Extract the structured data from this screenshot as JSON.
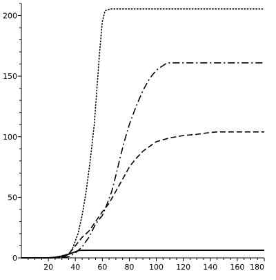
{
  "chart_data": {
    "type": "line",
    "title": "",
    "xlabel": "",
    "ylabel": "",
    "xlim": [
      0,
      180
    ],
    "ylim": [
      0,
      210
    ],
    "x_ticks": [
      20,
      40,
      60,
      80,
      100,
      120,
      140,
      160,
      180
    ],
    "y_ticks": [
      0,
      50,
      100,
      150,
      200
    ],
    "grid": false,
    "series": [
      {
        "style": "solid",
        "color": "#000000",
        "points": [
          [
            0,
            0
          ],
          [
            20,
            0
          ],
          [
            25,
            0.5
          ],
          [
            30,
            1.5
          ],
          [
            35,
            3
          ],
          [
            40,
            5
          ],
          [
            43,
            6.2
          ],
          [
            50,
            6.3
          ],
          [
            100,
            6.3
          ],
          [
            180,
            6.3
          ]
        ]
      },
      {
        "style": "dotted",
        "color": "#000000",
        "points": [
          [
            0,
            0
          ],
          [
            25,
            0
          ],
          [
            30,
            0.5
          ],
          [
            35,
            3
          ],
          [
            38,
            8
          ],
          [
            42,
            20
          ],
          [
            45,
            35
          ],
          [
            48,
            55
          ],
          [
            51,
            80
          ],
          [
            54,
            110
          ],
          [
            56,
            140
          ],
          [
            58,
            170
          ],
          [
            60,
            195
          ],
          [
            62,
            204
          ],
          [
            66,
            205.5
          ],
          [
            180,
            205.5
          ]
        ]
      },
      {
        "style": "dashed",
        "color": "#000000",
        "points": [
          [
            0,
            0
          ],
          [
            30,
            0
          ],
          [
            35,
            3
          ],
          [
            40,
            10
          ],
          [
            45,
            17
          ],
          [
            50,
            22
          ],
          [
            55,
            30
          ],
          [
            60,
            38
          ],
          [
            65,
            45
          ],
          [
            70,
            55
          ],
          [
            75,
            65
          ],
          [
            80,
            75
          ],
          [
            85,
            82
          ],
          [
            90,
            88
          ],
          [
            95,
            92
          ],
          [
            100,
            96
          ],
          [
            110,
            99
          ],
          [
            120,
            101
          ],
          [
            130,
            102
          ],
          [
            140,
            103.5
          ],
          [
            145,
            104
          ],
          [
            180,
            104
          ]
        ]
      },
      {
        "style": "dashdot",
        "color": "#000000",
        "points": [
          [
            0,
            0
          ],
          [
            30,
            0
          ],
          [
            35,
            1
          ],
          [
            40,
            4
          ],
          [
            45,
            9
          ],
          [
            50,
            17
          ],
          [
            55,
            28
          ],
          [
            60,
            35
          ],
          [
            63,
            43
          ],
          [
            67,
            55
          ],
          [
            70,
            68
          ],
          [
            73,
            82
          ],
          [
            76,
            95
          ],
          [
            80,
            110
          ],
          [
            85,
            125
          ],
          [
            90,
            138
          ],
          [
            95,
            148
          ],
          [
            100,
            155
          ],
          [
            104,
            158
          ],
          [
            108,
            161
          ],
          [
            180,
            161
          ]
        ]
      }
    ]
  }
}
